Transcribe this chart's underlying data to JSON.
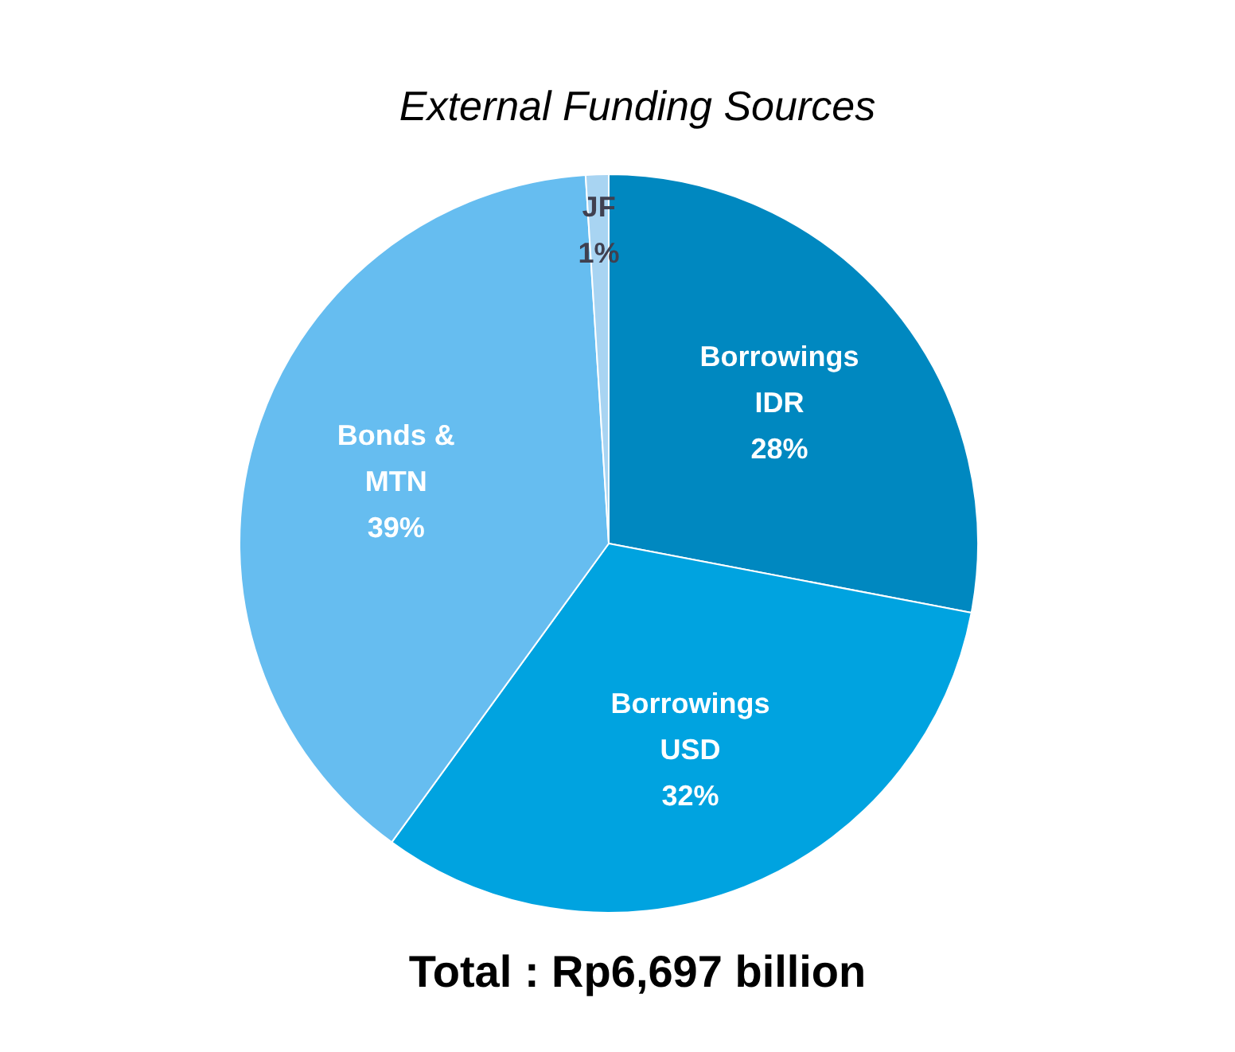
{
  "chart_data": {
    "type": "pie",
    "title": "External Funding Sources",
    "categories": [
      "Borrowings IDR",
      "Borrowings USD",
      "Bonds & MTN",
      "JF"
    ],
    "values": [
      28,
      32,
      39,
      1
    ],
    "colors": [
      "#0088c0",
      "#00a3e0",
      "#66bdf0",
      "#a8d4f2"
    ],
    "value_labels": [
      "28%",
      "32%",
      "39%",
      "1%"
    ],
    "annotations": [
      "Total : Rp6,697 billion"
    ]
  }
}
